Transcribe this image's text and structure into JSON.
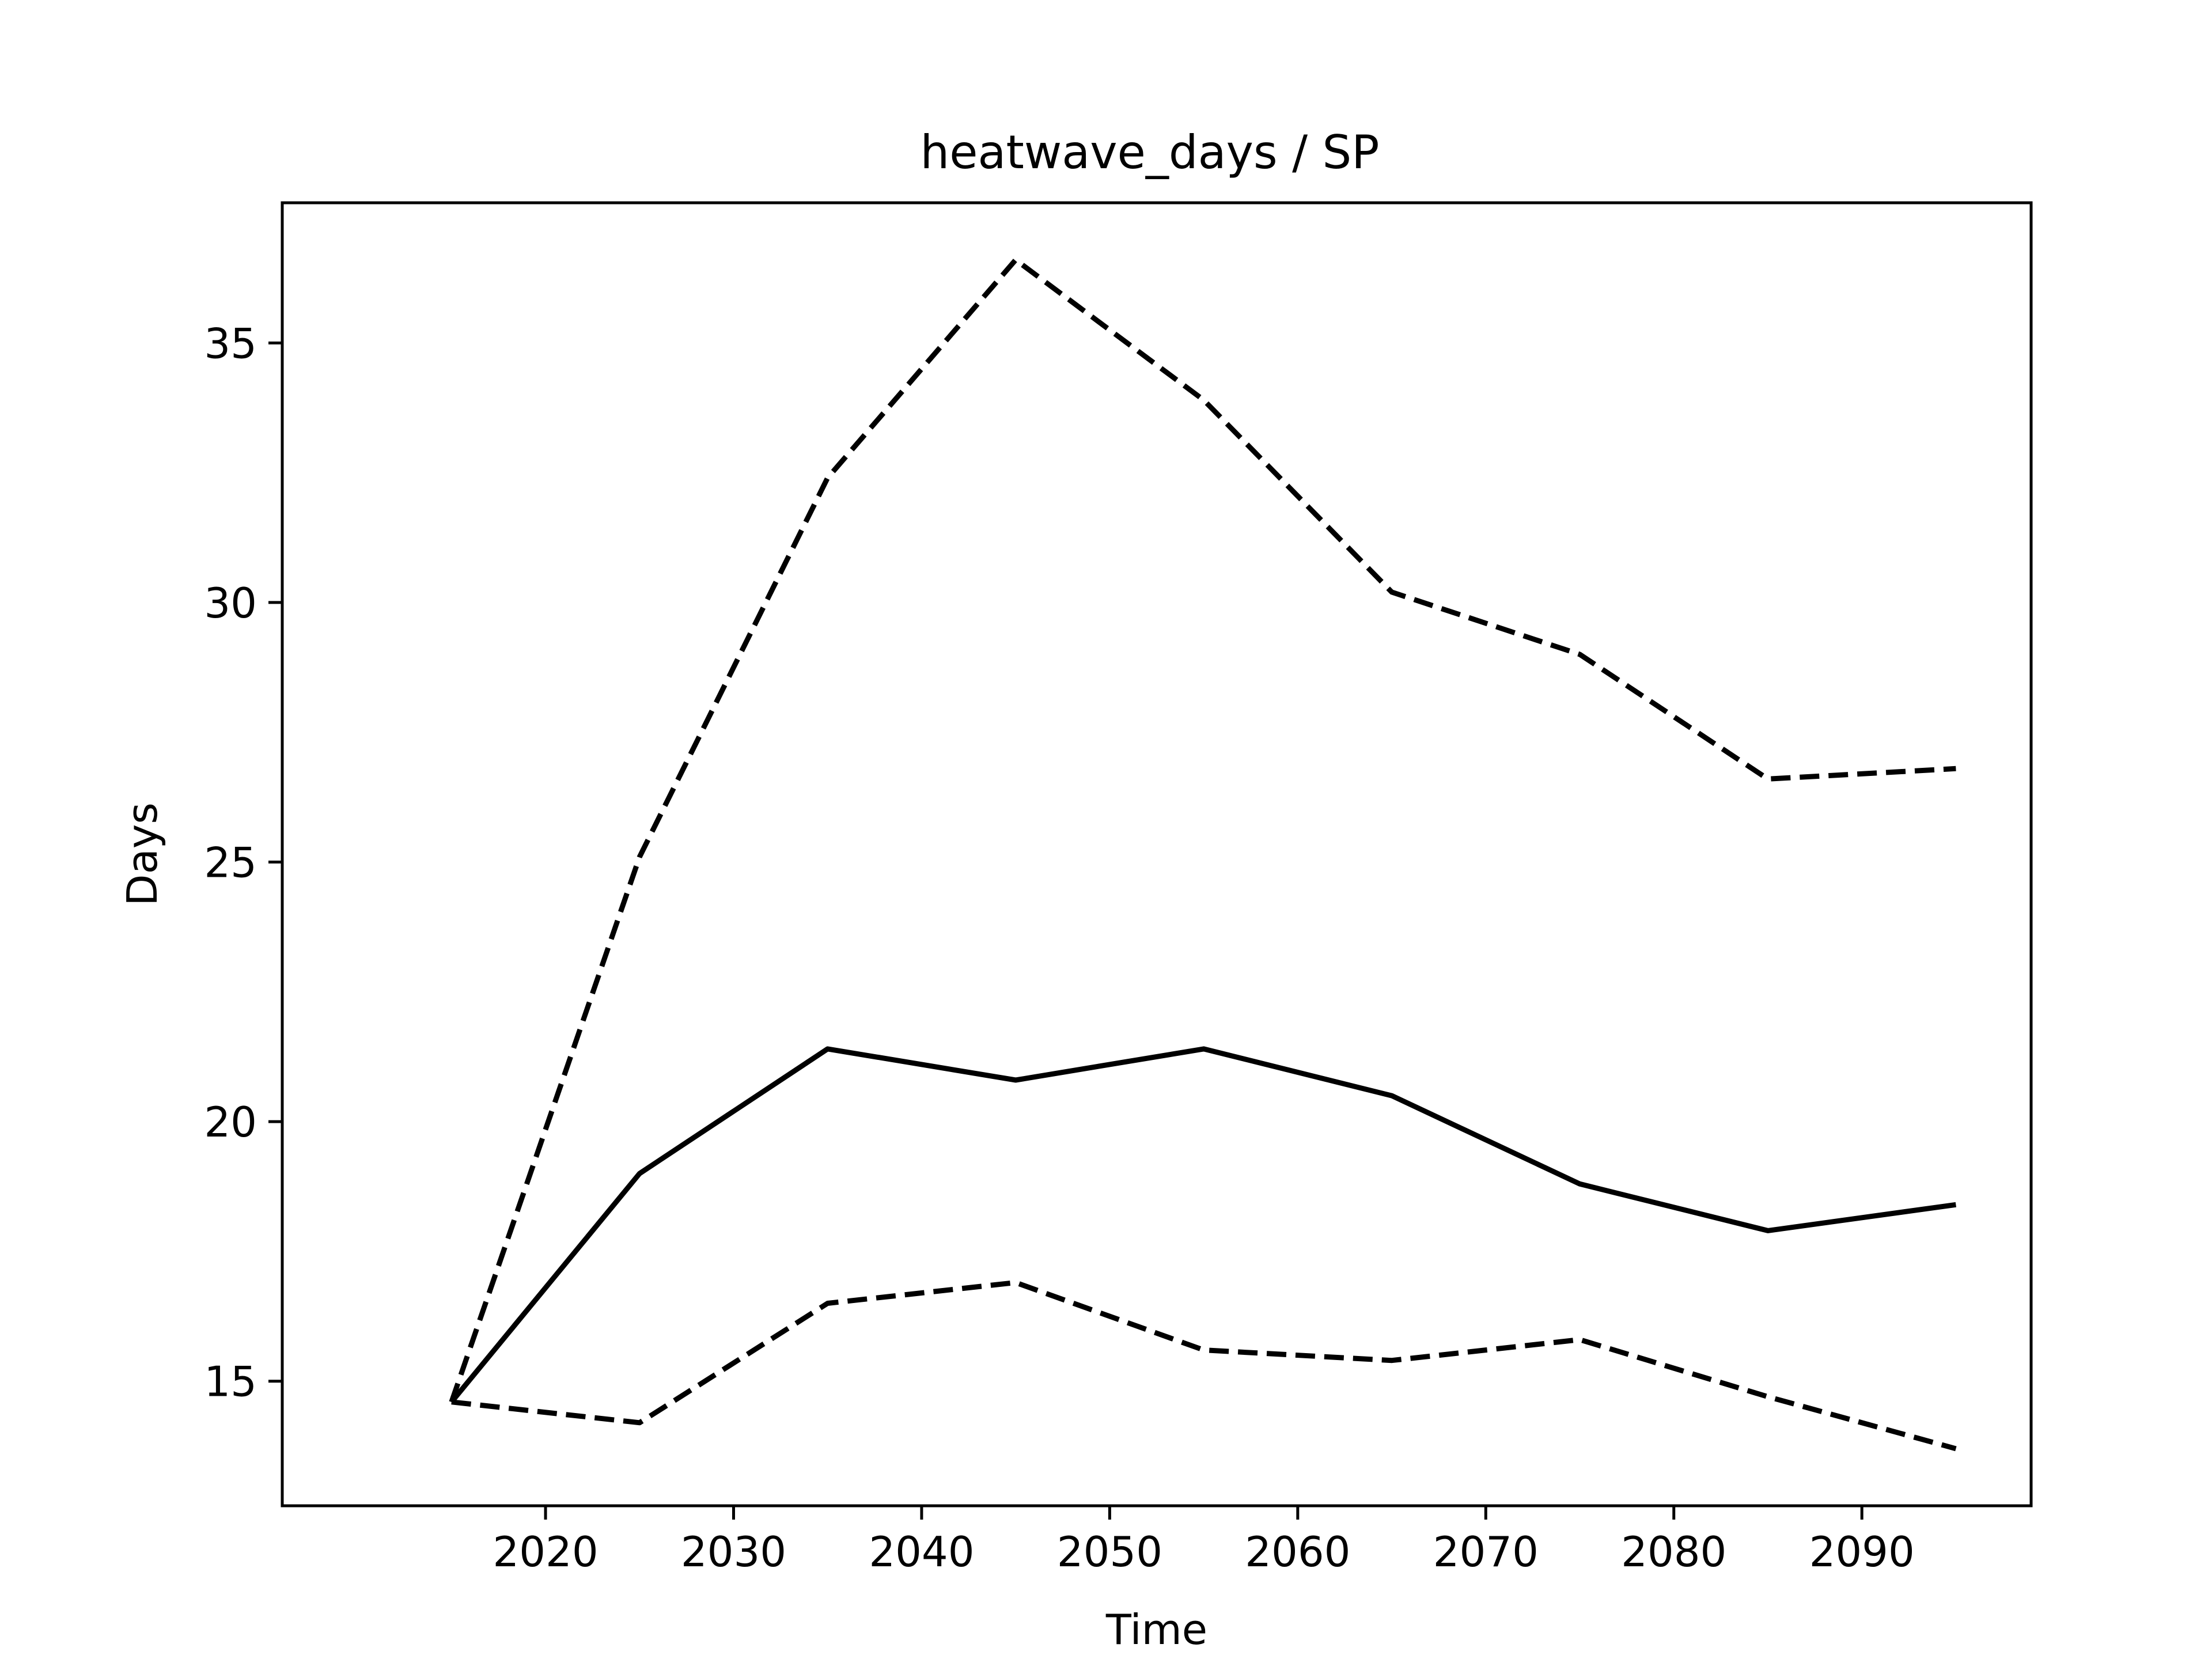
{
  "chart_data": {
    "type": "line",
    "title": "heatwave_days / SP",
    "xlabel": "Time",
    "ylabel": "Days",
    "x": [
      2015,
      2025,
      2035,
      2045,
      2055,
      2065,
      2075,
      2085,
      2095
    ],
    "xlim": [
      2006,
      2099
    ],
    "ylim": [
      12.6,
      37.7
    ],
    "xticks": [
      2020,
      2030,
      2040,
      2050,
      2060,
      2070,
      2080,
      2090
    ],
    "yticks": [
      15,
      20,
      25,
      30,
      35
    ],
    "grid": false,
    "series": [
      {
        "style": "solid",
        "color": "#000000",
        "values": [
          14.6,
          19.0,
          21.4,
          20.8,
          21.4,
          20.5,
          18.8,
          17.9,
          18.4
        ]
      },
      {
        "style": "dashed",
        "color": "#000000",
        "values": [
          14.6,
          25.1,
          32.4,
          36.6,
          33.9,
          30.2,
          29.0,
          26.6,
          26.8
        ]
      },
      {
        "style": "dashed",
        "color": "#000000",
        "values": [
          14.6,
          14.2,
          16.5,
          16.9,
          15.6,
          15.4,
          15.8,
          14.7,
          13.7
        ]
      }
    ]
  }
}
